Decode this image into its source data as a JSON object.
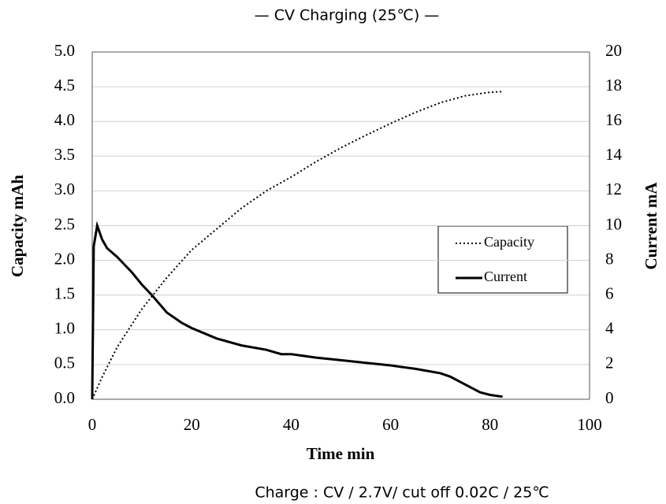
{
  "chart_data": {
    "type": "line",
    "title": "— CV Charging (25℃) —",
    "footnote": "Charge : CV / 2.7V/ cut off 0.02C / 25℃",
    "x_label": "Time min",
    "y_label": "Capacity mAh",
    "y2_label": "Current  mA",
    "xlim": [
      0,
      100
    ],
    "xticks": [
      0,
      20,
      40,
      60,
      80,
      100
    ],
    "ylim": [
      0,
      5
    ],
    "yticks": [
      {
        "value": 0,
        "label": "0.0"
      },
      0.5,
      {
        "value": 1,
        "label": "1.0"
      },
      1.5,
      {
        "value": 2,
        "label": "2.0"
      },
      2.5,
      {
        "value": 3,
        "label": "3.0"
      },
      3.5,
      {
        "value": 4,
        "label": "4.0"
      },
      4.5,
      {
        "value": 5,
        "label": "5.0"
      }
    ],
    "y2lim": [
      0,
      20
    ],
    "y2ticks": [
      0,
      2,
      4,
      6,
      8,
      10,
      12,
      14,
      16,
      18,
      20
    ],
    "grid": true,
    "series": [
      {
        "name": "Capacity",
        "color": "#000000",
        "dash": "dotted",
        "x": [
          0,
          2,
          5,
          10,
          15,
          20,
          25,
          30,
          35,
          40,
          45,
          50,
          55,
          60,
          65,
          70,
          75,
          80,
          82.5
        ],
        "values": [
          0,
          0.32,
          0.75,
          1.3,
          1.75,
          2.15,
          2.45,
          2.75,
          3.0,
          3.2,
          3.42,
          3.62,
          3.8,
          3.97,
          4.13,
          4.27,
          4.37,
          4.42,
          4.43
        ]
      },
      {
        "name": "Current",
        "color": "#000000",
        "dash": "solid",
        "axis": "y2",
        "x": [
          0,
          0.3,
          1,
          2,
          3,
          5,
          8,
          10,
          12,
          15,
          18,
          20,
          25,
          30,
          35,
          38,
          40,
          45,
          50,
          55,
          60,
          65,
          70,
          72,
          75,
          78,
          80,
          82.5
        ],
        "values": [
          0,
          8.8,
          10,
          9.2,
          8.7,
          8.2,
          7.3,
          6.6,
          6.0,
          5.0,
          4.4,
          4.1,
          3.5,
          3.1,
          2.85,
          2.6,
          2.6,
          2.4,
          2.25,
          2.1,
          1.95,
          1.75,
          1.5,
          1.3,
          0.85,
          0.4,
          0.25,
          0.15
        ]
      }
    ]
  }
}
